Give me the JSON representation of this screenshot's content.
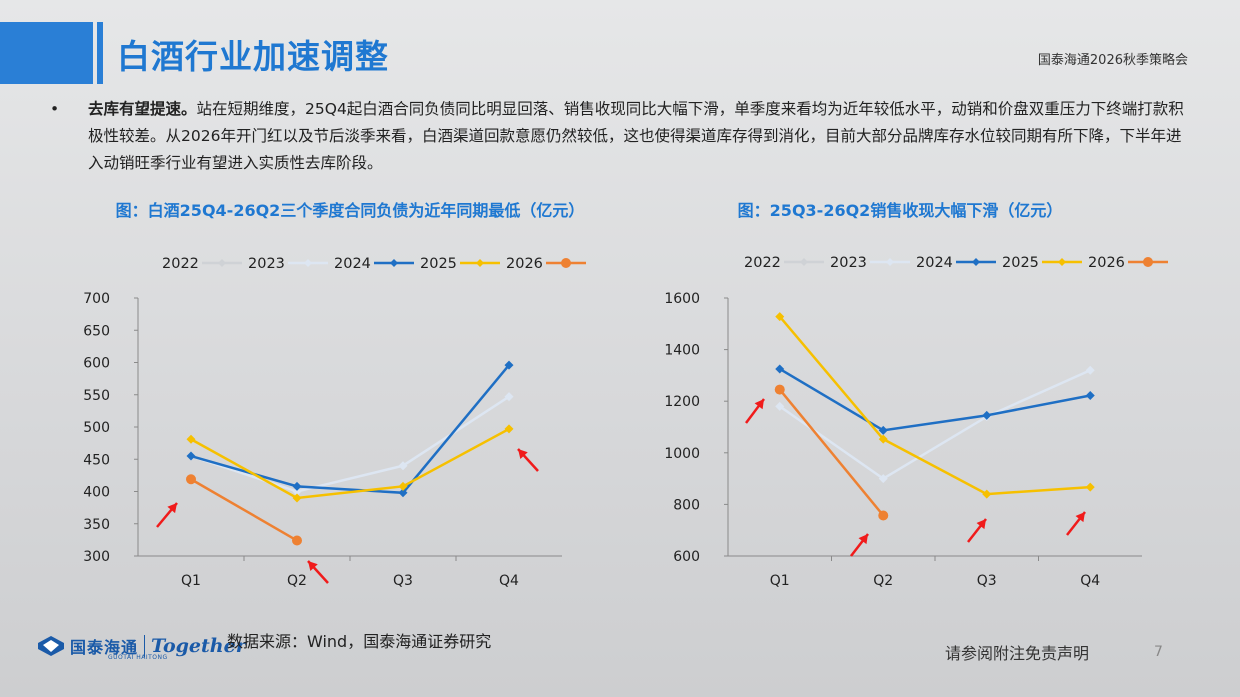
{
  "header": {
    "title": "白酒行业加速调整",
    "report_name": "国泰海通2026秋季策略会"
  },
  "bullet": {
    "head": "去库有望提速。",
    "text": "站在短期维度，25Q4起白酒合同负债同比明显回落、销售收现同比大幅下滑，单季度来看均为近年较低水平，动销和价盘双重压力下终端打款积极性较差。从2026年开门红以及节后淡季来看，白酒渠道回款意愿仍然较低，这也使得渠道库存得到消化，目前大部分品牌库存水位较同期有所下降，下半年进入动销旺季行业有望进入实质性去库阶段。"
  },
  "chart_data": [
    {
      "type": "line",
      "title": "图：白酒25Q4-26Q2三个季度合同负债为近年同期最低（亿元）",
      "categories": [
        "Q1",
        "Q2",
        "Q3",
        "Q4"
      ],
      "ylim": [
        300,
        700
      ],
      "yticks": [
        "300",
        "350",
        "400",
        "450",
        "500",
        "550",
        "600",
        "650",
        "700"
      ],
      "legend_position": "top",
      "series": [
        {
          "name": "2022",
          "color": "#cfd2d6",
          "values": [
            null,
            null,
            null,
            null
          ]
        },
        {
          "name": "2023",
          "color": "#dde6f2",
          "values": [
            455,
            400,
            440,
            547
          ]
        },
        {
          "name": "2024",
          "color": "#1f6fc4",
          "values": [
            455,
            408,
            398,
            596
          ]
        },
        {
          "name": "2025",
          "color": "#f6c000",
          "values": [
            481,
            390,
            408,
            497
          ]
        },
        {
          "name": "2026",
          "color": "#ee8132",
          "values": [
            419,
            324,
            null,
            null
          ]
        }
      ]
    },
    {
      "type": "line",
      "title": "图：25Q3-26Q2销售收现大幅下滑（亿元）",
      "categories": [
        "Q1",
        "Q2",
        "Q3",
        "Q4"
      ],
      "ylim": [
        600,
        1600
      ],
      "yticks": [
        "600",
        "800",
        "1000",
        "1200",
        "1400",
        "1600"
      ],
      "legend_position": "top",
      "series": [
        {
          "name": "2022",
          "color": "#cfd2d6",
          "values": [
            null,
            null,
            null,
            null
          ]
        },
        {
          "name": "2023",
          "color": "#dde6f2",
          "values": [
            1180,
            900,
            1140,
            1320
          ]
        },
        {
          "name": "2024",
          "color": "#1f6fc4",
          "values": [
            1325,
            1087,
            1145,
            1222
          ]
        },
        {
          "name": "2025",
          "color": "#f6c000",
          "values": [
            1528,
            1053,
            840,
            867
          ]
        },
        {
          "name": "2026",
          "color": "#ee8132",
          "values": [
            1245,
            757,
            null,
            null
          ]
        }
      ]
    }
  ],
  "footer": {
    "logo_cn": "国泰海通",
    "logo_en": "GUOTAI HAITONG",
    "logo_together": "Together",
    "source": "数据来源：Wind，国泰海通证券研究",
    "disclaimer": "请参阅附注免责声明",
    "page": "7"
  }
}
